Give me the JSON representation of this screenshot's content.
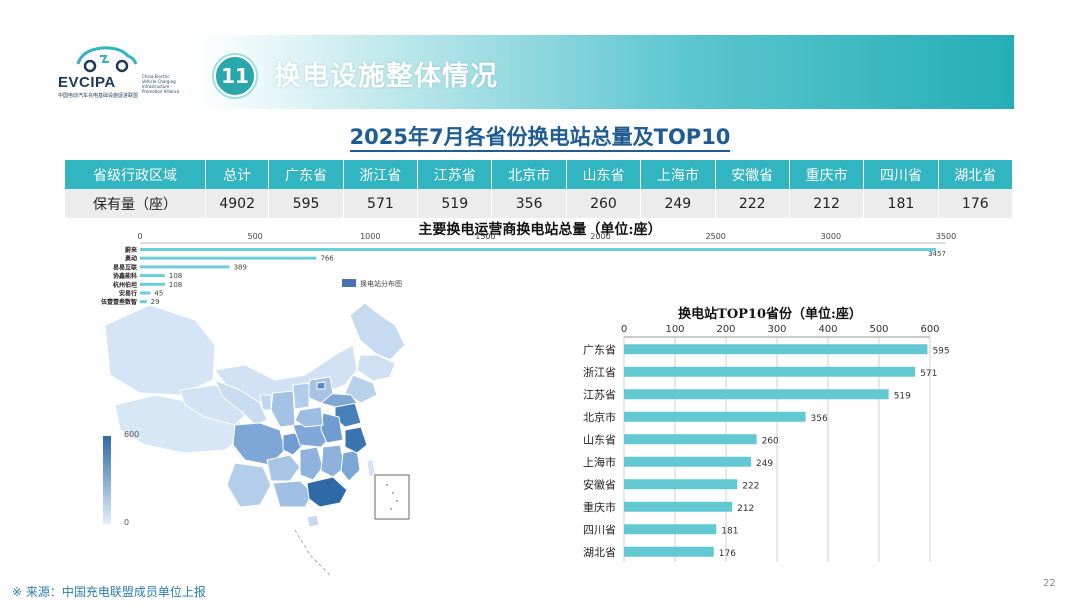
{
  "brand": {
    "name": "EVCIPA",
    "tagline": "中国电动汽车充电基础设施促进联盟",
    "tagline_en": "China Electric Vehicle Charging Infrastructure Promotion Alliance"
  },
  "header": {
    "section_number": "11",
    "title": "换电设施整体情况"
  },
  "main_title": "2025年7月各省份换电站总量及TOP10",
  "table": {
    "row_header": "省级行政区域",
    "value_header": "保有量（座）",
    "columns": [
      "总计",
      "广东省",
      "浙江省",
      "江苏省",
      "北京市",
      "山东省",
      "上海市",
      "安徽省",
      "重庆市",
      "四川省",
      "湖北省"
    ],
    "values": [
      "4902",
      "595",
      "571",
      "519",
      "356",
      "260",
      "249",
      "222",
      "212",
      "181",
      "176"
    ]
  },
  "operators_chart_title": "主要换电运营商换电站总量（单位:座）",
  "legend_label": "换电站分布图",
  "map_scale": {
    "max": "600",
    "min": "0"
  },
  "top10_chart_title": "换电站TOP10省份（单位:座）",
  "footer": {
    "source": "※ 来源：中国充电联盟成员单位上报",
    "page": "22"
  },
  "colors": {
    "accent": "#31b5c0",
    "bar": "#62c9d3",
    "operator_bar": "#6cced8",
    "title": "#1e5c92",
    "map_dark": "#2f6aa8",
    "map_light": "#d5e5f5"
  },
  "chart_data": [
    {
      "type": "bar",
      "orientation": "horizontal",
      "title": "主要换电运营商换电站总量（单位:座）",
      "categories": [
        "蔚来",
        "奥动",
        "易易互联",
        "协鑫能科",
        "杭州伯坦",
        "安易行",
        "伍壹壹叁数智"
      ],
      "values": [
        3457,
        766,
        389,
        108,
        108,
        45,
        29
      ],
      "xlim": [
        0,
        3500
      ],
      "xticks": [
        0,
        500,
        1000,
        1500,
        2000,
        2500,
        3000,
        3500
      ],
      "xaxis_position": "top"
    },
    {
      "type": "bar",
      "orientation": "horizontal",
      "title": "换电站TOP10省份（单位:座）",
      "categories": [
        "广东省",
        "浙江省",
        "江苏省",
        "北京市",
        "山东省",
        "上海市",
        "安徽省",
        "重庆市",
        "四川省",
        "湖北省"
      ],
      "values": [
        595,
        571,
        519,
        356,
        260,
        249,
        222,
        212,
        181,
        176
      ],
      "xlim": [
        0,
        600
      ],
      "xticks": [
        0,
        100,
        200,
        300,
        400,
        500,
        600
      ],
      "xaxis_position": "top",
      "grid": true
    }
  ]
}
